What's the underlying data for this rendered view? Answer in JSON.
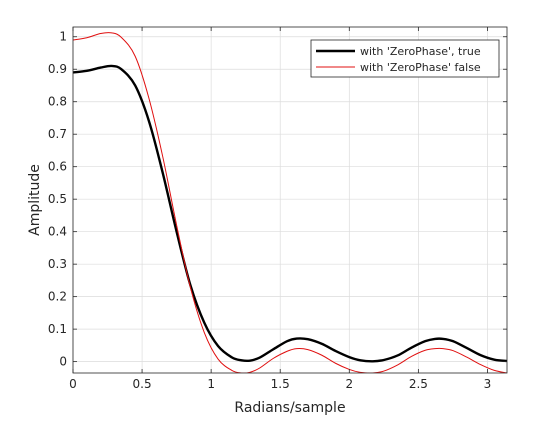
{
  "chart_data": {
    "type": "line",
    "title": "",
    "xlabel": "Radians/sample",
    "ylabel": "Amplitude",
    "xlim": [
      0,
      3.1416
    ],
    "ylim": [
      -0.035,
      1.03
    ],
    "xticks": [
      0,
      0.5,
      1,
      1.5,
      2,
      2.5,
      3
    ],
    "xtick_labels": [
      "0",
      "0.5",
      "1",
      "1.5",
      "2",
      "2.5",
      "3"
    ],
    "yticks": [
      0,
      0.1,
      0.2,
      0.3,
      0.4,
      0.5,
      0.6,
      0.7,
      0.8,
      0.9,
      1
    ],
    "ytick_labels": [
      "0",
      "0.1",
      "0.2",
      "0.3",
      "0.4",
      "0.5",
      "0.6",
      "0.7",
      "0.8",
      "0.9",
      "1"
    ],
    "grid": true,
    "legend_position": "top-right",
    "series": [
      {
        "name": "with 'ZeroPhase', true",
        "color": "#000000",
        "x": [
          0,
          0.1,
          0.2,
          0.28,
          0.35,
          0.45,
          0.55,
          0.65,
          0.75,
          0.85,
          0.95,
          1.05,
          1.15,
          1.22,
          1.28,
          1.35,
          1.45,
          1.55,
          1.62,
          1.7,
          1.8,
          1.9,
          2.0,
          2.08,
          2.17,
          2.25,
          2.35,
          2.45,
          2.55,
          2.62,
          2.68,
          2.75,
          2.85,
          2.95,
          3.05,
          3.1416
        ],
        "y": [
          0.89,
          0.895,
          0.905,
          0.91,
          0.9,
          0.85,
          0.74,
          0.58,
          0.4,
          0.235,
          0.12,
          0.048,
          0.013,
          0.004,
          0.003,
          0.012,
          0.038,
          0.063,
          0.071,
          0.069,
          0.055,
          0.033,
          0.014,
          0.004,
          0.001,
          0.005,
          0.019,
          0.043,
          0.063,
          0.07,
          0.07,
          0.063,
          0.042,
          0.02,
          0.006,
          0.002
        ]
      },
      {
        "name": "with 'ZeroPhase' false",
        "color": "#e01010",
        "x": [
          0,
          0.1,
          0.2,
          0.28,
          0.35,
          0.45,
          0.55,
          0.65,
          0.75,
          0.85,
          0.95,
          1.05,
          1.15,
          1.22,
          1.28,
          1.35,
          1.45,
          1.55,
          1.62,
          1.7,
          1.8,
          1.9,
          2.0,
          2.08,
          2.17,
          2.25,
          2.35,
          2.45,
          2.55,
          2.62,
          2.68,
          2.75,
          2.85,
          2.95,
          3.05,
          3.1416
        ],
        "y": [
          0.99,
          0.997,
          1.01,
          1.012,
          0.998,
          0.94,
          0.81,
          0.63,
          0.42,
          0.228,
          0.09,
          0.008,
          -0.027,
          -0.035,
          -0.033,
          -0.02,
          0.01,
          0.032,
          0.04,
          0.037,
          0.02,
          -0.005,
          -0.024,
          -0.033,
          -0.035,
          -0.029,
          -0.01,
          0.016,
          0.035,
          0.04,
          0.04,
          0.034,
          0.014,
          -0.009,
          -0.027,
          -0.035
        ]
      }
    ]
  }
}
